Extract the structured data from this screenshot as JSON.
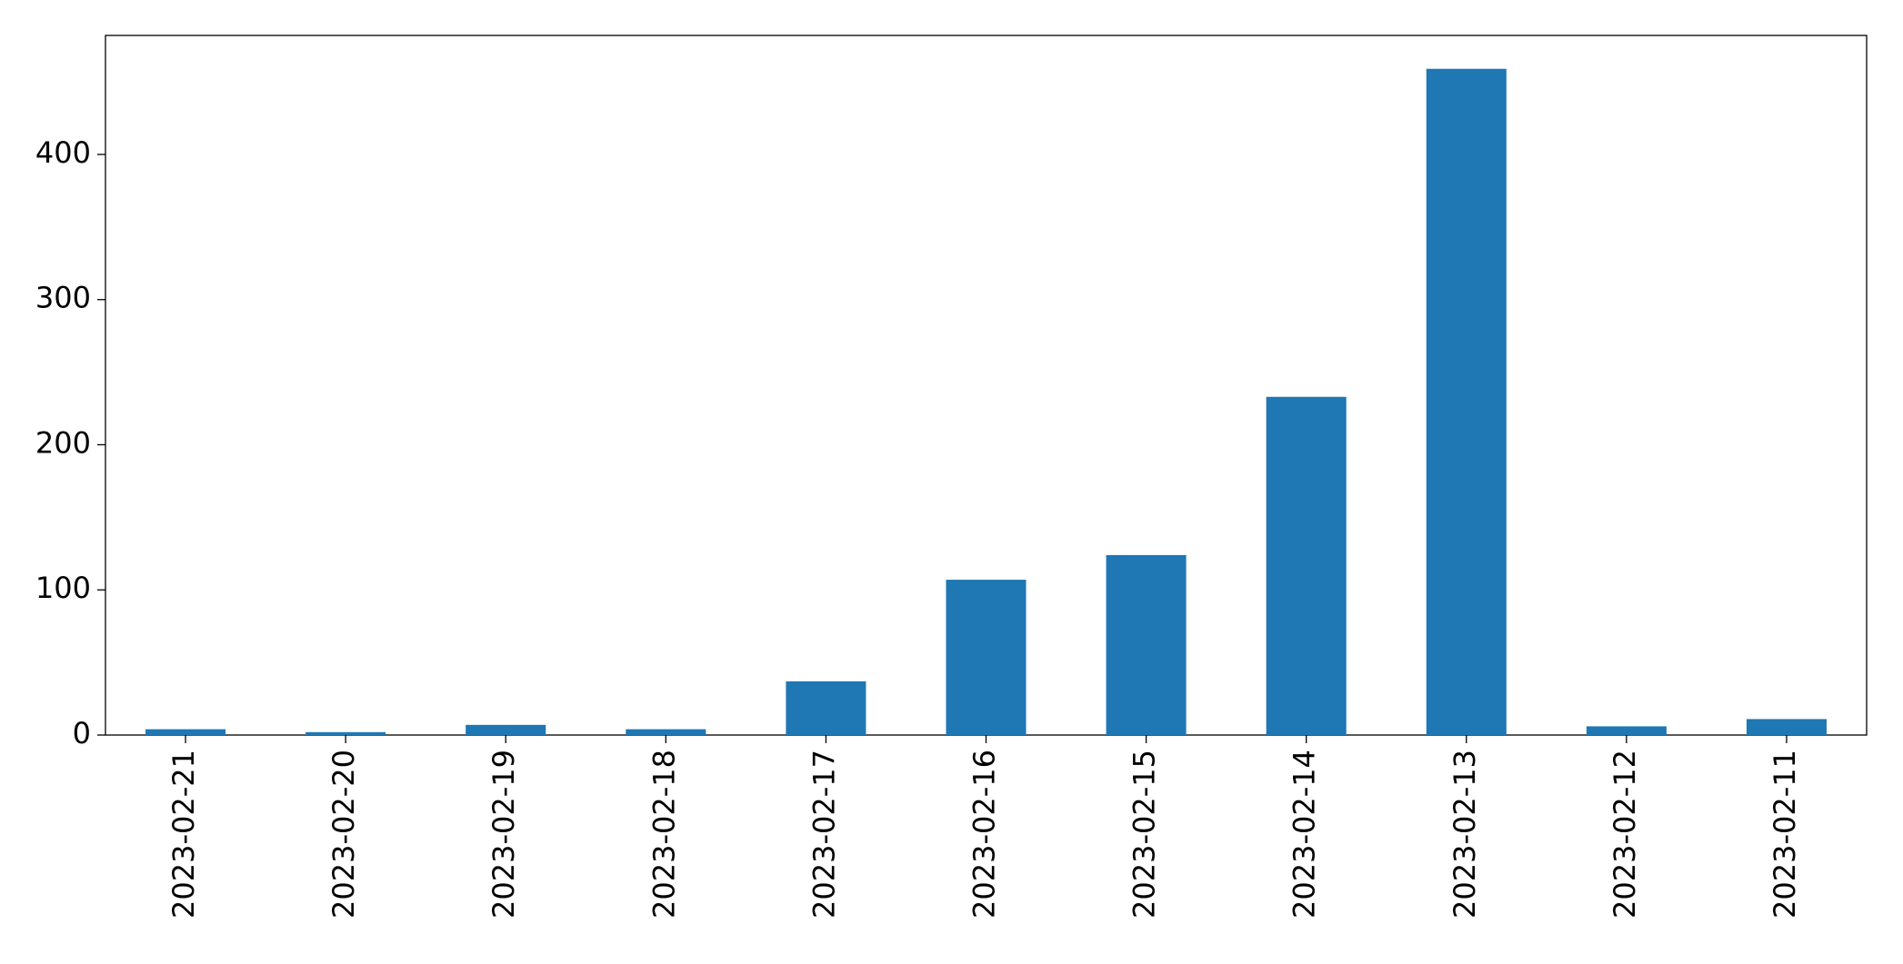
{
  "chart_data": {
    "type": "bar",
    "categories": [
      "2023-02-21",
      "2023-02-20",
      "2023-02-19",
      "2023-02-18",
      "2023-02-17",
      "2023-02-16",
      "2023-02-15",
      "2023-02-14",
      "2023-02-13",
      "2023-02-12",
      "2023-02-11"
    ],
    "values": [
      4,
      2,
      7,
      4,
      37,
      107,
      124,
      233,
      459,
      6,
      11
    ],
    "color": "#1f77b4",
    "ylim": [
      0,
      482
    ],
    "yticks": [
      0,
      100,
      200,
      300,
      400
    ],
    "grid": false
  }
}
